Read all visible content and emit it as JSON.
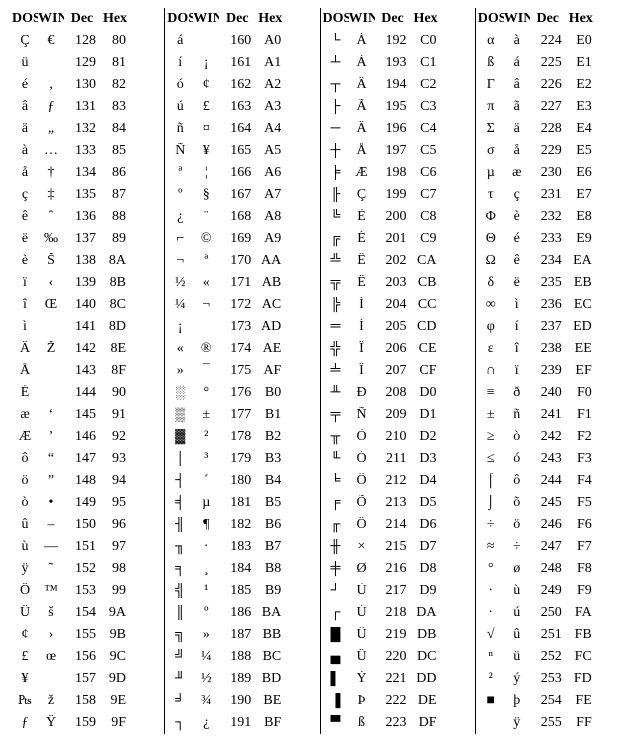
{
  "headers": {
    "dos": "DOS",
    "win": "WIN",
    "dec": "Dec",
    "hex": "Hex"
  },
  "rows": [
    [
      "Ç",
      "€",
      "128",
      "80",
      "á",
      "",
      "160",
      "A0",
      "└",
      "À",
      "192",
      "C0",
      "α",
      "à",
      "224",
      "E0"
    ],
    [
      "ü",
      "",
      "129",
      "81",
      "í",
      "¡",
      "161",
      "A1",
      "┴",
      "Á",
      "193",
      "C1",
      "ß",
      "á",
      "225",
      "E1"
    ],
    [
      "é",
      "‚",
      "130",
      "82",
      "ó",
      "¢",
      "162",
      "A2",
      "┬",
      "Â",
      "194",
      "C2",
      "Γ",
      "â",
      "226",
      "E2"
    ],
    [
      "â",
      "ƒ",
      "131",
      "83",
      "ú",
      "£",
      "163",
      "A3",
      "├",
      "Ã",
      "195",
      "C3",
      "π",
      "ã",
      "227",
      "E3"
    ],
    [
      "ä",
      "„",
      "132",
      "84",
      "ñ",
      "¤",
      "164",
      "A4",
      "─",
      "Ä",
      "196",
      "C4",
      "Σ",
      "ä",
      "228",
      "E4"
    ],
    [
      "à",
      "…",
      "133",
      "85",
      "Ñ",
      "¥",
      "165",
      "A5",
      "┼",
      "Å",
      "197",
      "C5",
      "σ",
      "å",
      "229",
      "E5"
    ],
    [
      "å",
      "†",
      "134",
      "86",
      "ª",
      "¦",
      "166",
      "A6",
      "╞",
      "Æ",
      "198",
      "C6",
      "µ",
      "æ",
      "230",
      "E6"
    ],
    [
      "ç",
      "‡",
      "135",
      "87",
      "º",
      "§",
      "167",
      "A7",
      "╟",
      "Ç",
      "199",
      "C7",
      "τ",
      "ç",
      "231",
      "E7"
    ],
    [
      "ê",
      "ˆ",
      "136",
      "88",
      "¿",
      "¨",
      "168",
      "A8",
      "╚",
      "È",
      "200",
      "C8",
      "Φ",
      "è",
      "232",
      "E8"
    ],
    [
      "ë",
      "‰",
      "137",
      "89",
      "⌐",
      "©",
      "169",
      "A9",
      "╔",
      "É",
      "201",
      "C9",
      "Θ",
      "é",
      "233",
      "E9"
    ],
    [
      "è",
      "Š",
      "138",
      "8A",
      "¬",
      "ª",
      "170",
      "AA",
      "╩",
      "Ê",
      "202",
      "CA",
      "Ω",
      "ê",
      "234",
      "EA"
    ],
    [
      "ï",
      "‹",
      "139",
      "8B",
      "½",
      "«",
      "171",
      "AB",
      "╦",
      "Ë",
      "203",
      "CB",
      "δ",
      "ë",
      "235",
      "EB"
    ],
    [
      "î",
      "Œ",
      "140",
      "8C",
      "¼",
      "¬",
      "172",
      "AC",
      "╠",
      "Ì",
      "204",
      "CC",
      "∞",
      "ì",
      "236",
      "EC"
    ],
    [
      "ì",
      "",
      "141",
      "8D",
      "¡",
      "­",
      "173",
      "AD",
      "═",
      "Í",
      "205",
      "CD",
      "φ",
      "í",
      "237",
      "ED"
    ],
    [
      "Ä",
      "Ž",
      "142",
      "8E",
      "«",
      "®",
      "174",
      "AE",
      "╬",
      "Î",
      "206",
      "CE",
      "ε",
      "î",
      "238",
      "EE"
    ],
    [
      "Å",
      "",
      "143",
      "8F",
      "»",
      "¯",
      "175",
      "AF",
      "╧",
      "Ï",
      "207",
      "CF",
      "∩",
      "ï",
      "239",
      "EF"
    ],
    [
      "É",
      "",
      "144",
      "90",
      "░",
      "°",
      "176",
      "B0",
      "╨",
      "Ð",
      "208",
      "D0",
      "≡",
      "ð",
      "240",
      "F0"
    ],
    [
      "æ",
      "‘",
      "145",
      "91",
      "▒",
      "±",
      "177",
      "B1",
      "╤",
      "Ñ",
      "209",
      "D1",
      "±",
      "ñ",
      "241",
      "F1"
    ],
    [
      "Æ",
      "’",
      "146",
      "92",
      "▓",
      "²",
      "178",
      "B2",
      "╥",
      "Ò",
      "210",
      "D2",
      "≥",
      "ò",
      "242",
      "F2"
    ],
    [
      "ô",
      "“",
      "147",
      "93",
      "│",
      "³",
      "179",
      "B3",
      "╙",
      "Ó",
      "211",
      "D3",
      "≤",
      "ó",
      "243",
      "F3"
    ],
    [
      "ö",
      "”",
      "148",
      "94",
      "┤",
      "´",
      "180",
      "B4",
      "╘",
      "Ô",
      "212",
      "D4",
      "⌠",
      "ô",
      "244",
      "F4"
    ],
    [
      "ò",
      "•",
      "149",
      "95",
      "╡",
      "µ",
      "181",
      "B5",
      "╒",
      "Õ",
      "213",
      "D5",
      "⌡",
      "õ",
      "245",
      "F5"
    ],
    [
      "û",
      "–",
      "150",
      "96",
      "╢",
      "¶",
      "182",
      "B6",
      "╓",
      "Ö",
      "214",
      "D6",
      "÷",
      "ö",
      "246",
      "F6"
    ],
    [
      "ù",
      "—",
      "151",
      "97",
      "╖",
      "·",
      "183",
      "B7",
      "╫",
      "×",
      "215",
      "D7",
      "≈",
      "÷",
      "247",
      "F7"
    ],
    [
      "ÿ",
      "˜",
      "152",
      "98",
      "╕",
      "¸",
      "184",
      "B8",
      "╪",
      "Ø",
      "216",
      "D8",
      "°",
      "ø",
      "248",
      "F8"
    ],
    [
      "Ö",
      "™",
      "153",
      "99",
      "╣",
      "¹",
      "185",
      "B9",
      "┘",
      "Ù",
      "217",
      "D9",
      "∙",
      "ù",
      "249",
      "F9"
    ],
    [
      "Ü",
      "š",
      "154",
      "9A",
      "║",
      "º",
      "186",
      "BA",
      "┌",
      "Ú",
      "218",
      "DA",
      "·",
      "ú",
      "250",
      "FA"
    ],
    [
      "¢",
      "›",
      "155",
      "9B",
      "╗",
      "»",
      "187",
      "BB",
      "█",
      "Û",
      "219",
      "DB",
      "√",
      "û",
      "251",
      "FB"
    ],
    [
      "£",
      "œ",
      "156",
      "9C",
      "╝",
      "¼",
      "188",
      "BC",
      "▄",
      "Ü",
      "220",
      "DC",
      "ⁿ",
      "ü",
      "252",
      "FC"
    ],
    [
      "¥",
      "",
      "157",
      "9D",
      "╜",
      "½",
      "189",
      "BD",
      "▌",
      "Ý",
      "221",
      "DD",
      "²",
      "ý",
      "253",
      "FD"
    ],
    [
      "₧",
      "ž",
      "158",
      "9E",
      "╛",
      "¾",
      "190",
      "BE",
      "▐",
      "Þ",
      "222",
      "DE",
      "■",
      "þ",
      "254",
      "FE"
    ],
    [
      "ƒ",
      "Ÿ",
      "159",
      "9F",
      "┐",
      "¿",
      "191",
      "BF",
      "▀",
      "ß",
      "223",
      "DF",
      " ",
      "ÿ",
      "255",
      "FF"
    ]
  ]
}
